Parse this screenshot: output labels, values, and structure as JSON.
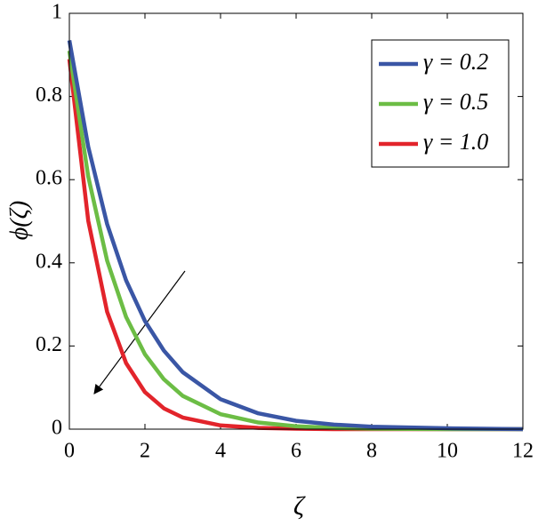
{
  "chart_data": {
    "type": "line",
    "xlabel": "ζ",
    "ylabel": "ϕ(ζ)",
    "x": [
      0,
      0.5,
      1,
      1.5,
      2,
      2.5,
      3,
      4,
      5,
      6,
      7,
      8,
      10,
      12
    ],
    "series": [
      {
        "name": "γ = 0.2",
        "color": "#3a56a5",
        "values": [
          0.935,
          0.679,
          0.493,
          0.358,
          0.26,
          0.189,
          0.137,
          0.072,
          0.038,
          0.02,
          0.011,
          0.006,
          0.002,
          0
        ]
      },
      {
        "name": "γ = 0.5",
        "color": "#6cbd45",
        "values": [
          0.91,
          0.607,
          0.405,
          0.27,
          0.18,
          0.12,
          0.08,
          0.036,
          0.016,
          0.007,
          0.003,
          0.001,
          0,
          0
        ]
      },
      {
        "name": "γ = 1.0",
        "color": "#e2242b",
        "values": [
          0.89,
          0.501,
          0.282,
          0.159,
          0.089,
          0.05,
          0.028,
          0.009,
          0.003,
          0.001,
          0,
          0,
          0,
          0
        ]
      }
    ],
    "xlim": [
      0,
      12
    ],
    "xticks": [
      0,
      2,
      4,
      6,
      8,
      10,
      12
    ],
    "ylim": [
      0,
      1
    ],
    "yticks": [
      0,
      0.2,
      0.4,
      0.6,
      0.8,
      1
    ],
    "legend": "upper right"
  }
}
